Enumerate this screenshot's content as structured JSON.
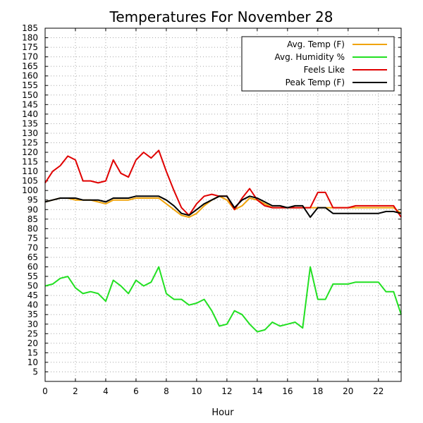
{
  "chart_data": {
    "type": "line",
    "title": "Temperatures For November 28",
    "xlabel": "Hour",
    "ylabel": "",
    "xlim": [
      0,
      23.5
    ],
    "ylim": [
      0,
      185
    ],
    "xticks": [
      0,
      2,
      4,
      6,
      8,
      10,
      12,
      14,
      16,
      18,
      20,
      22
    ],
    "yticks": [
      5,
      10,
      15,
      20,
      25,
      30,
      35,
      40,
      45,
      50,
      55,
      60,
      65,
      70,
      75,
      80,
      85,
      90,
      95,
      100,
      105,
      110,
      115,
      120,
      125,
      130,
      135,
      140,
      145,
      150,
      155,
      160,
      165,
      170,
      175,
      180,
      185
    ],
    "grid": true,
    "legend": "top-right",
    "x": [
      0,
      0.5,
      1,
      1.5,
      2,
      2.5,
      3,
      3.5,
      4,
      4.5,
      5,
      5.5,
      6,
      6.5,
      7,
      7.5,
      8,
      8.5,
      9,
      9.5,
      10,
      10.5,
      11,
      11.5,
      12,
      12.5,
      13,
      13.5,
      14,
      14.5,
      15,
      15.5,
      16,
      16.5,
      17,
      17.5,
      18,
      18.5,
      19,
      19.5,
      20,
      20.5,
      21,
      21.5,
      22,
      22.5,
      23,
      23.5
    ],
    "series": [
      {
        "name": "Avg. Temp (F)",
        "color": "#f0a30a",
        "values": [
          94,
          95,
          96,
          96,
          95,
          95,
          95,
          94,
          93,
          95,
          95,
          95,
          96,
          96,
          96,
          96,
          93,
          90,
          87,
          86,
          88,
          92,
          95,
          97,
          95,
          90,
          92,
          96,
          95,
          93,
          91,
          91,
          91,
          91,
          91,
          91,
          91,
          91,
          91,
          91,
          91,
          91,
          91,
          91,
          91,
          91,
          91,
          88
        ]
      },
      {
        "name": "Avg. Humidity %",
        "color": "#22e022",
        "values": [
          50,
          51,
          54,
          55,
          49,
          46,
          47,
          46,
          42,
          53,
          50,
          46,
          53,
          50,
          52,
          60,
          46,
          43,
          43,
          40,
          41,
          43,
          37,
          29,
          30,
          37,
          35,
          30,
          26,
          27,
          31,
          29,
          30,
          31,
          28,
          60,
          43,
          43,
          51,
          51,
          51,
          52,
          52,
          52,
          52,
          47,
          47,
          35
        ]
      },
      {
        "name": "Feels Like",
        "color": "#e00000",
        "values": [
          104,
          110,
          113,
          118,
          116,
          105,
          105,
          104,
          105,
          116,
          109,
          107,
          116,
          120,
          117,
          121,
          110,
          100,
          91,
          87,
          93,
          97,
          98,
          97,
          97,
          90,
          96,
          101,
          95,
          92,
          91,
          91,
          91,
          91,
          91,
          91,
          99,
          99,
          91,
          91,
          91,
          92,
          92,
          92,
          92,
          92,
          92,
          86
        ]
      },
      {
        "name": "Peak Temp (F)",
        "color": "#000000",
        "values": [
          94,
          95,
          96,
          96,
          96,
          95,
          95,
          95,
          94,
          96,
          96,
          96,
          97,
          97,
          97,
          97,
          95,
          92,
          88,
          87,
          90,
          93,
          95,
          97,
          97,
          91,
          95,
          97,
          96,
          94,
          92,
          92,
          91,
          92,
          92,
          86,
          91,
          91,
          88,
          88,
          88,
          88,
          88,
          88,
          88,
          89,
          89,
          88
        ]
      }
    ]
  }
}
